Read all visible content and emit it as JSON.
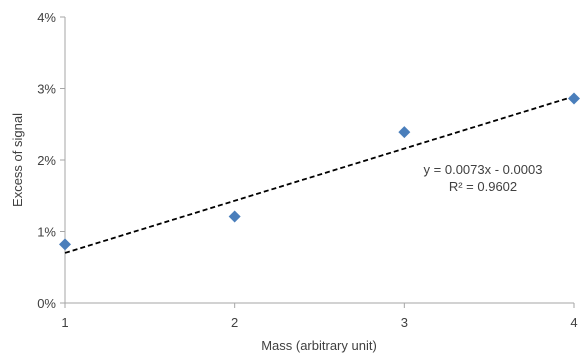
{
  "chart_data": {
    "type": "scatter",
    "title": "",
    "xlabel": "Mass (arbitrary unit)",
    "ylabel": "Excess of signal",
    "xlim": [
      1,
      4
    ],
    "ylim": [
      0,
      0.04
    ],
    "xticks": [
      1,
      2,
      3,
      4
    ],
    "yticks": [
      0,
      0.01,
      0.02,
      0.03,
      0.04
    ],
    "xtick_labels": [
      "1",
      "2",
      "3",
      "4"
    ],
    "ytick_labels": [
      "0%",
      "1%",
      "2%",
      "3%",
      "4%"
    ],
    "grid": false,
    "legend": "none",
    "marker": "diamond",
    "marker_color": "#4a7ebb",
    "trendline_color": "#000000",
    "series": [
      {
        "x": [
          1,
          2,
          3,
          4
        ],
        "y": [
          0.0082,
          0.0121,
          0.0239,
          0.0286
        ]
      }
    ],
    "trendline": {
      "type": "linear",
      "slope": 0.0073,
      "intercept": -0.0003,
      "x_range": [
        1,
        4
      ],
      "equation": "y = 0.0073x - 0.0003",
      "r_squared": "R² = 0.9602"
    }
  }
}
